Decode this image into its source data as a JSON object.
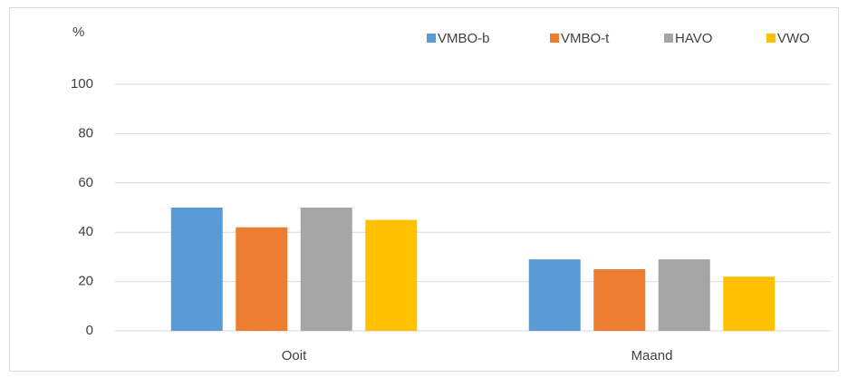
{
  "chart_data": {
    "type": "bar",
    "ylabel": "%",
    "categories": [
      "Ooit",
      "Maand"
    ],
    "series": [
      {
        "name": "VMBO-b",
        "color": "#5b9bd5",
        "values": [
          50,
          29
        ]
      },
      {
        "name": "VMBO-t",
        "color": "#ed7d31",
        "values": [
          42,
          25
        ]
      },
      {
        "name": "HAVO",
        "color": "#a5a5a5",
        "values": [
          50,
          29
        ]
      },
      {
        "name": "VWO",
        "color": "#ffc000",
        "values": [
          45,
          22
        ]
      }
    ],
    "ylim": [
      0,
      100
    ],
    "yticks": [
      0,
      20,
      40,
      60,
      80,
      100
    ],
    "grid": true,
    "legend": "top-right"
  }
}
